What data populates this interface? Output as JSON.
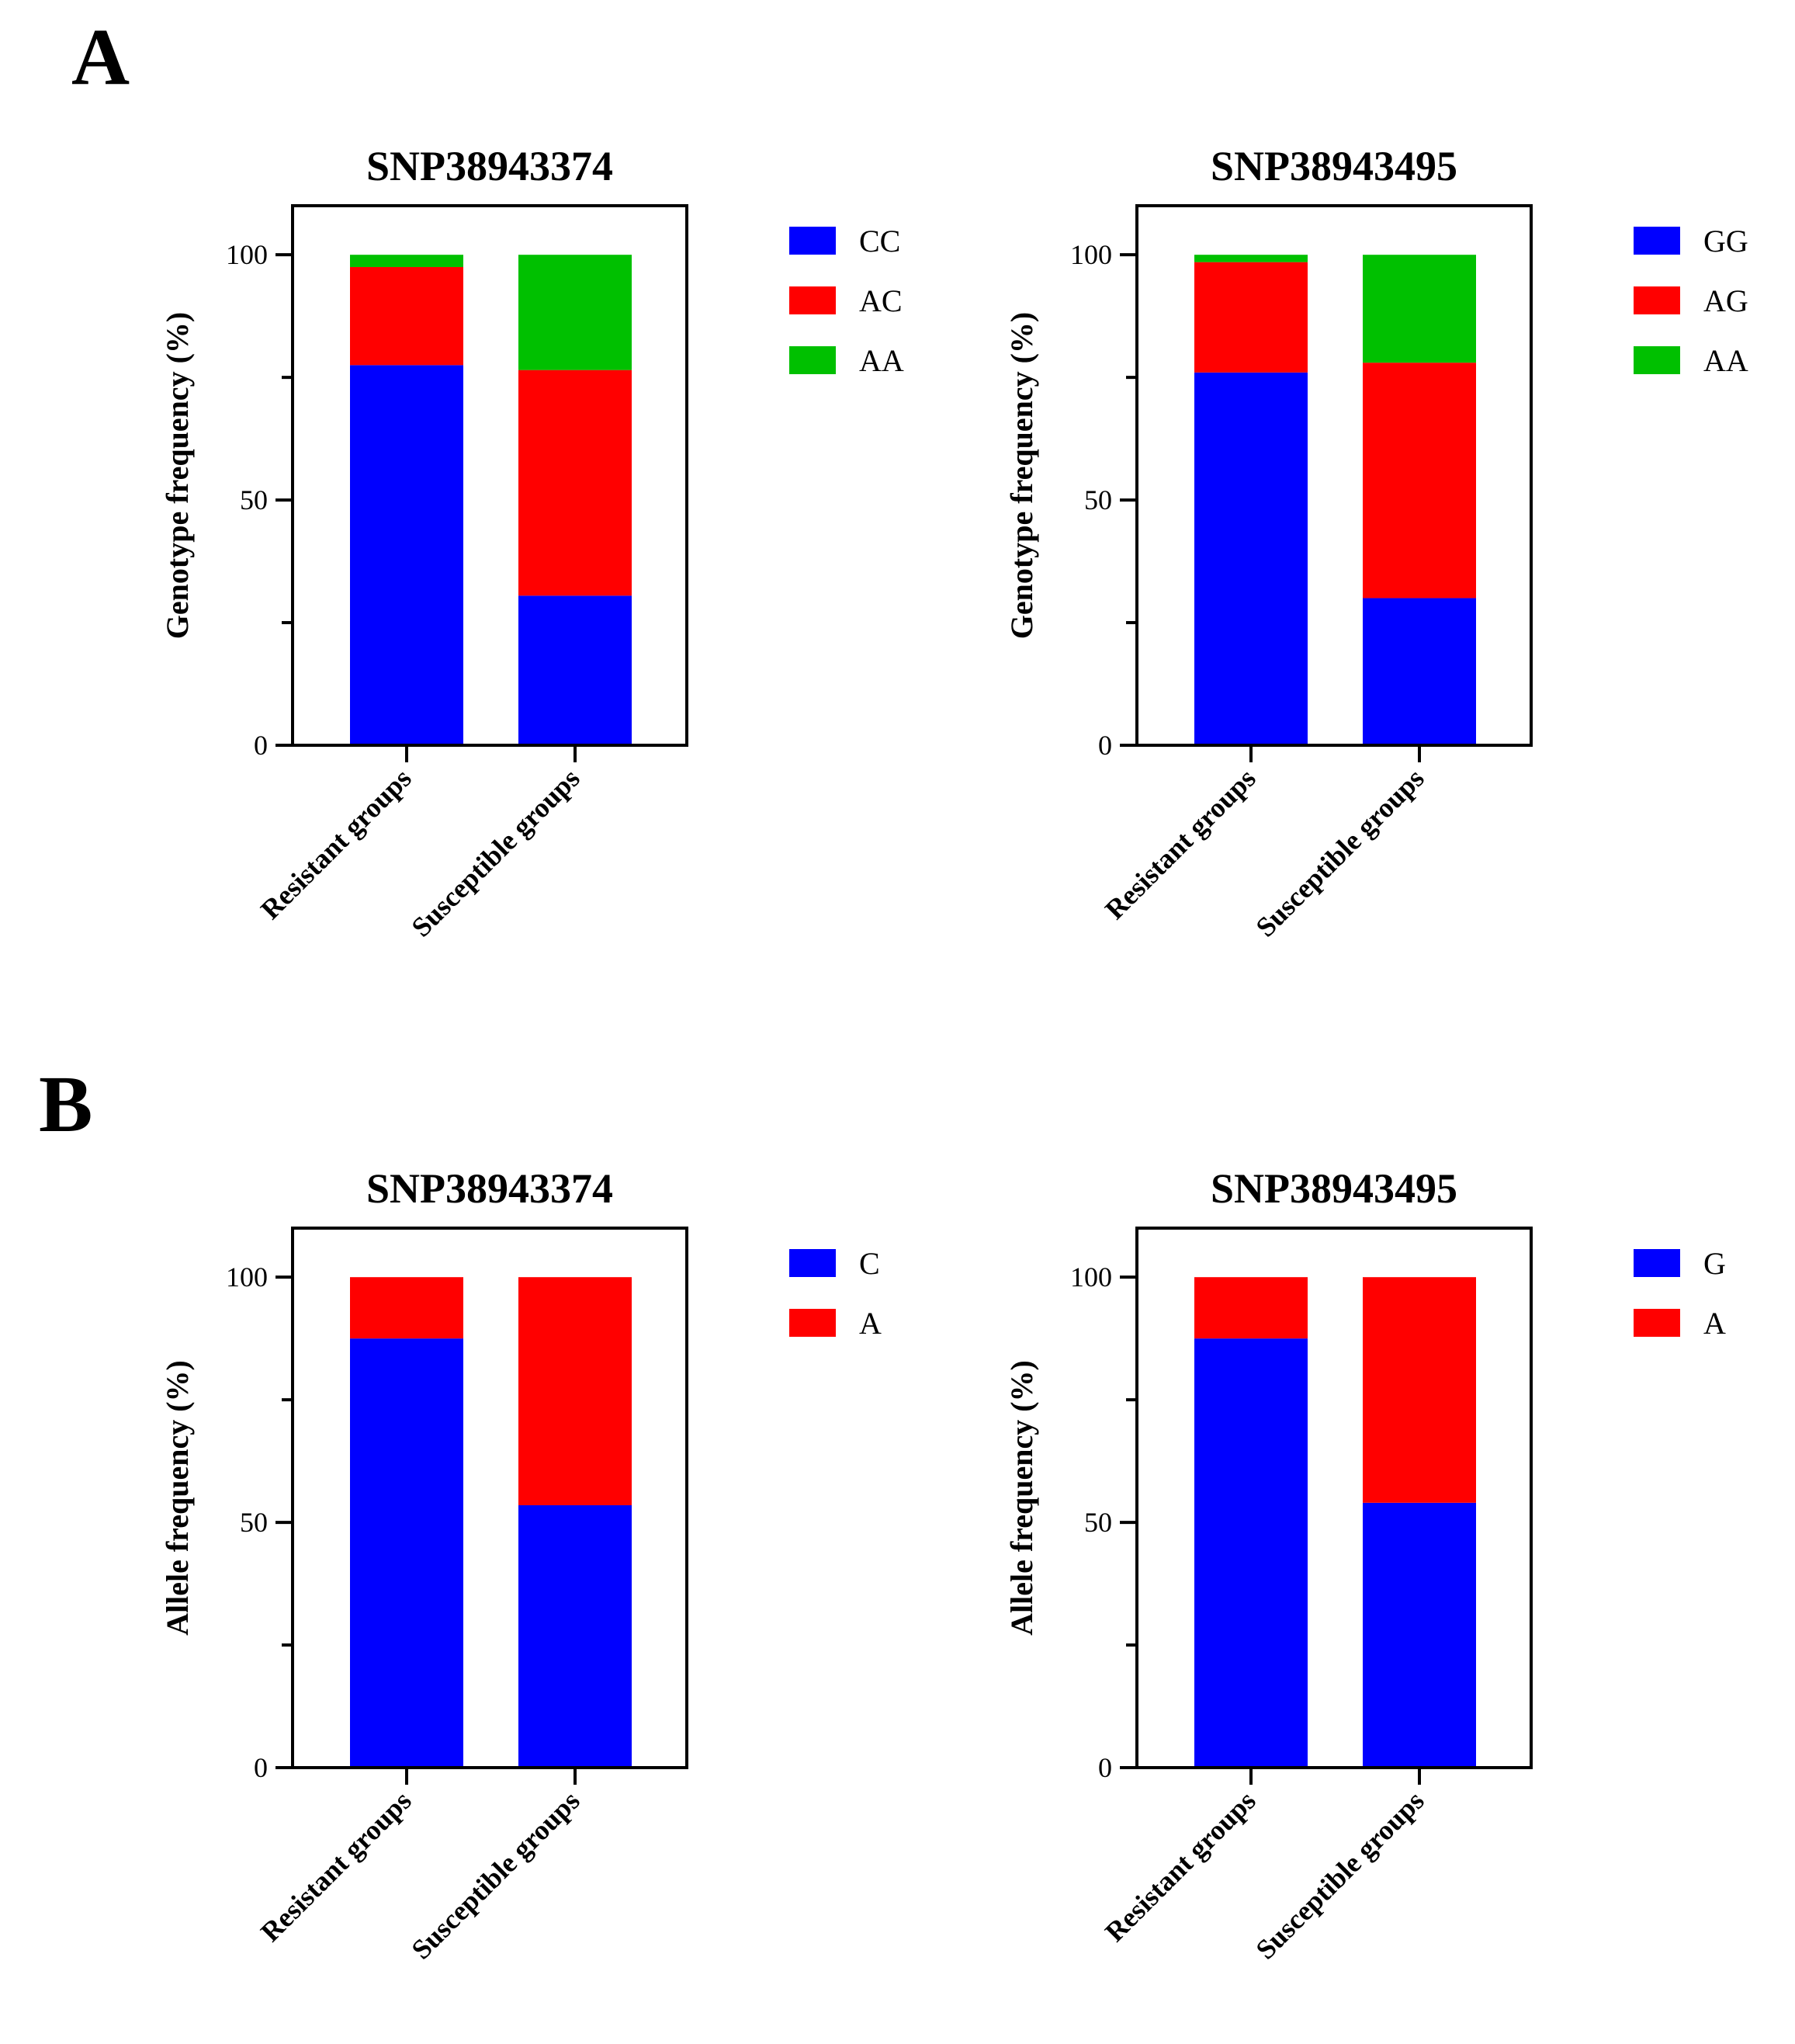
{
  "panels": [
    {
      "letter": "A"
    },
    {
      "letter": "B"
    }
  ],
  "chart_data": [
    {
      "type": "bar",
      "stacked": true,
      "panel": "A",
      "title": "SNP38943374",
      "xlabel": "",
      "ylabel": "Genotype frequency (%)",
      "ylim": [
        0,
        110
      ],
      "yticks": [
        0,
        50,
        100
      ],
      "categories": [
        "Resistant groups",
        "Susceptible groups"
      ],
      "series": [
        {
          "name": "CC",
          "color": "#0000FF",
          "values": [
            77.5,
            30.5
          ]
        },
        {
          "name": "AC",
          "color": "#FF0000",
          "values": [
            20.0,
            46.0
          ]
        },
        {
          "name": "AA",
          "color": "#00C000",
          "values": [
            2.5,
            23.5
          ]
        }
      ]
    },
    {
      "type": "bar",
      "stacked": true,
      "panel": "A",
      "title": "SNP38943495",
      "xlabel": "",
      "ylabel": "Genotype frequency (%)",
      "ylim": [
        0,
        110
      ],
      "yticks": [
        0,
        50,
        100
      ],
      "categories": [
        "Resistant groups",
        "Susceptible groups"
      ],
      "series": [
        {
          "name": "GG",
          "color": "#0000FF",
          "values": [
            76.0,
            30.0
          ]
        },
        {
          "name": "AG",
          "color": "#FF0000",
          "values": [
            22.5,
            48.0
          ]
        },
        {
          "name": "AA",
          "color": "#00C000",
          "values": [
            1.5,
            22.0
          ]
        }
      ]
    },
    {
      "type": "bar",
      "stacked": true,
      "panel": "B",
      "title": "SNP38943374",
      "xlabel": "",
      "ylabel": "Allele frequency (%)",
      "ylim": [
        0,
        110
      ],
      "yticks": [
        0,
        50,
        100
      ],
      "categories": [
        "Resistant groups",
        "Susceptible groups"
      ],
      "series": [
        {
          "name": "C",
          "color": "#0000FF",
          "values": [
            87.5,
            53.5
          ]
        },
        {
          "name": "A",
          "color": "#FF0000",
          "values": [
            12.5,
            46.5
          ]
        }
      ]
    },
    {
      "type": "bar",
      "stacked": true,
      "panel": "B",
      "title": "SNP38943495",
      "xlabel": "",
      "ylabel": "Allele frequency (%)",
      "ylim": [
        0,
        110
      ],
      "yticks": [
        0,
        50,
        100
      ],
      "categories": [
        "Resistant groups",
        "Susceptible groups"
      ],
      "series": [
        {
          "name": "G",
          "color": "#0000FF",
          "values": [
            87.5,
            54.0
          ]
        },
        {
          "name": "A",
          "color": "#FF0000",
          "values": [
            12.5,
            46.0
          ]
        }
      ]
    }
  ]
}
